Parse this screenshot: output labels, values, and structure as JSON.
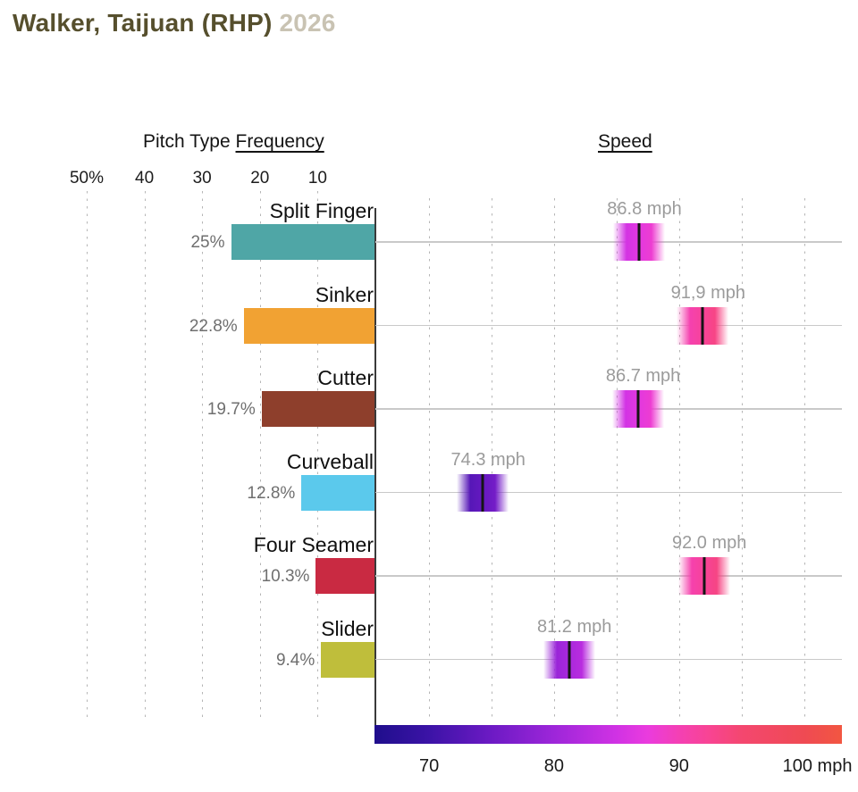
{
  "header": {
    "player_name": "Walker, Taijuan (RHP)",
    "season": "2026"
  },
  "panel_titles": {
    "frequency_prefix": "Pitch Type ",
    "frequency_underlined": "Frequency",
    "speed": "Speed"
  },
  "colors": {
    "title_text": "#564F2D",
    "season_text": "#C9C3B3",
    "percent_label": "#6F6F6F",
    "speed_value_label": "#9B9B9B",
    "axis_line": "#3A3A3A",
    "grid_dash": "#B5B5B5",
    "row_line": "#C9C9C9",
    "marker_center_line": "#151515",
    "colormap_stops": [
      {
        "mph": 65.7,
        "color": "#1F0E8C"
      },
      {
        "mph": 70.0,
        "color": "#3B13A6"
      },
      {
        "mph": 75.0,
        "color": "#6C1AC4"
      },
      {
        "mph": 80.0,
        "color": "#9D26D9"
      },
      {
        "mph": 85.0,
        "color": "#D032E4"
      },
      {
        "mph": 87.5,
        "color": "#EA3BDE"
      },
      {
        "mph": 90.0,
        "color": "#F440B4"
      },
      {
        "mph": 92.5,
        "color": "#F84492"
      },
      {
        "mph": 95.0,
        "color": "#F4476F"
      },
      {
        "mph": 100.0,
        "color": "#EF4A53"
      },
      {
        "mph": 103.0,
        "color": "#F25641"
      }
    ]
  },
  "chart_data": {
    "type": "bar",
    "title": "Walker, Taijuan (RHP) 2026 pitch type frequency and speed",
    "categories": [
      "Split Finger",
      "Sinker",
      "Cutter",
      "Curveball",
      "Four Seamer",
      "Slider"
    ],
    "series": [
      {
        "name": "Pitch Type Frequency",
        "unit": "%",
        "values": [
          25,
          22.8,
          19.7,
          12.8,
          10.3,
          9.4
        ]
      },
      {
        "name": "Speed",
        "unit": "mph",
        "values": [
          86.8,
          91.9,
          86.7,
          74.3,
          92.0,
          81.2
        ]
      }
    ],
    "frequency_axis": {
      "direction": "right-to-left",
      "ticks": [
        "50%",
        "40",
        "30",
        "20",
        "10"
      ],
      "tick_values": [
        50,
        40,
        30,
        20,
        10
      ],
      "range": [
        0,
        55
      ],
      "grid": true
    },
    "speed_axis": {
      "range_mph": [
        65.7,
        103.0
      ],
      "gridline_values": [
        70,
        75,
        80,
        85,
        90,
        95,
        100
      ],
      "tick_labels": [
        "70",
        "80",
        "90",
        "100 mph"
      ],
      "tick_values": [
        70,
        80,
        90,
        100
      ],
      "grid": true,
      "colorbar_legend_position": "bottom"
    },
    "pitches": [
      {
        "name": "Split Finger",
        "frequency_pct": 25,
        "frequency_label": "25%",
        "bar_color": "#4FA6A6",
        "speed_mph": 86.8,
        "speed_label": "86.8 mph"
      },
      {
        "name": "Sinker",
        "frequency_pct": 22.8,
        "frequency_label": "22.8%",
        "bar_color": "#F1A233",
        "speed_mph": 91.9,
        "speed_label": "91,9 mph"
      },
      {
        "name": "Cutter",
        "frequency_pct": 19.7,
        "frequency_label": "19.7%",
        "bar_color": "#8E3F2C",
        "speed_mph": 86.7,
        "speed_label": "86.7 mph"
      },
      {
        "name": "Curveball",
        "frequency_pct": 12.8,
        "frequency_label": "12.8%",
        "bar_color": "#5BC9EC",
        "speed_mph": 74.3,
        "speed_label": "74.3 mph"
      },
      {
        "name": "Four Seamer",
        "frequency_pct": 10.3,
        "frequency_label": "10.3%",
        "bar_color": "#C92A42",
        "speed_mph": 92.0,
        "speed_label": "92.0 mph"
      },
      {
        "name": "Slider",
        "frequency_pct": 9.4,
        "frequency_label": "9.4%",
        "bar_color": "#BFBE3B",
        "speed_mph": 81.2,
        "speed_label": "81.2 mph"
      }
    ]
  }
}
